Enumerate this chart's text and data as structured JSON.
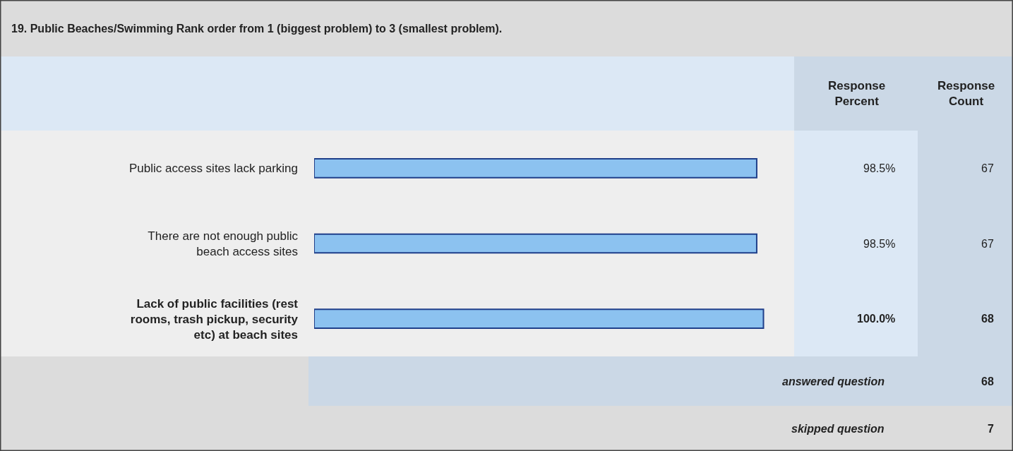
{
  "chart_data": {
    "type": "bar",
    "orientation": "horizontal",
    "title": "19. Public Beaches/Swimming Rank order from 1 (biggest problem) to 3 (smallest problem).",
    "categories": [
      "Public access sites lack parking",
      "There are not enough public beach access sites",
      "Lack of public facilities (rest rooms, trash pickup, security etc) at beach sites"
    ],
    "values": [
      98.5,
      98.5,
      100.0
    ],
    "value_labels": [
      "98.5%",
      "98.5%",
      "100.0%"
    ],
    "color": "#8cc2f0",
    "annotations": [
      "Response Percent",
      "Response Count",
      "67",
      "67",
      "68",
      "answered question",
      "68",
      "skipped question",
      "7"
    ],
    "legend": false
  }
}
